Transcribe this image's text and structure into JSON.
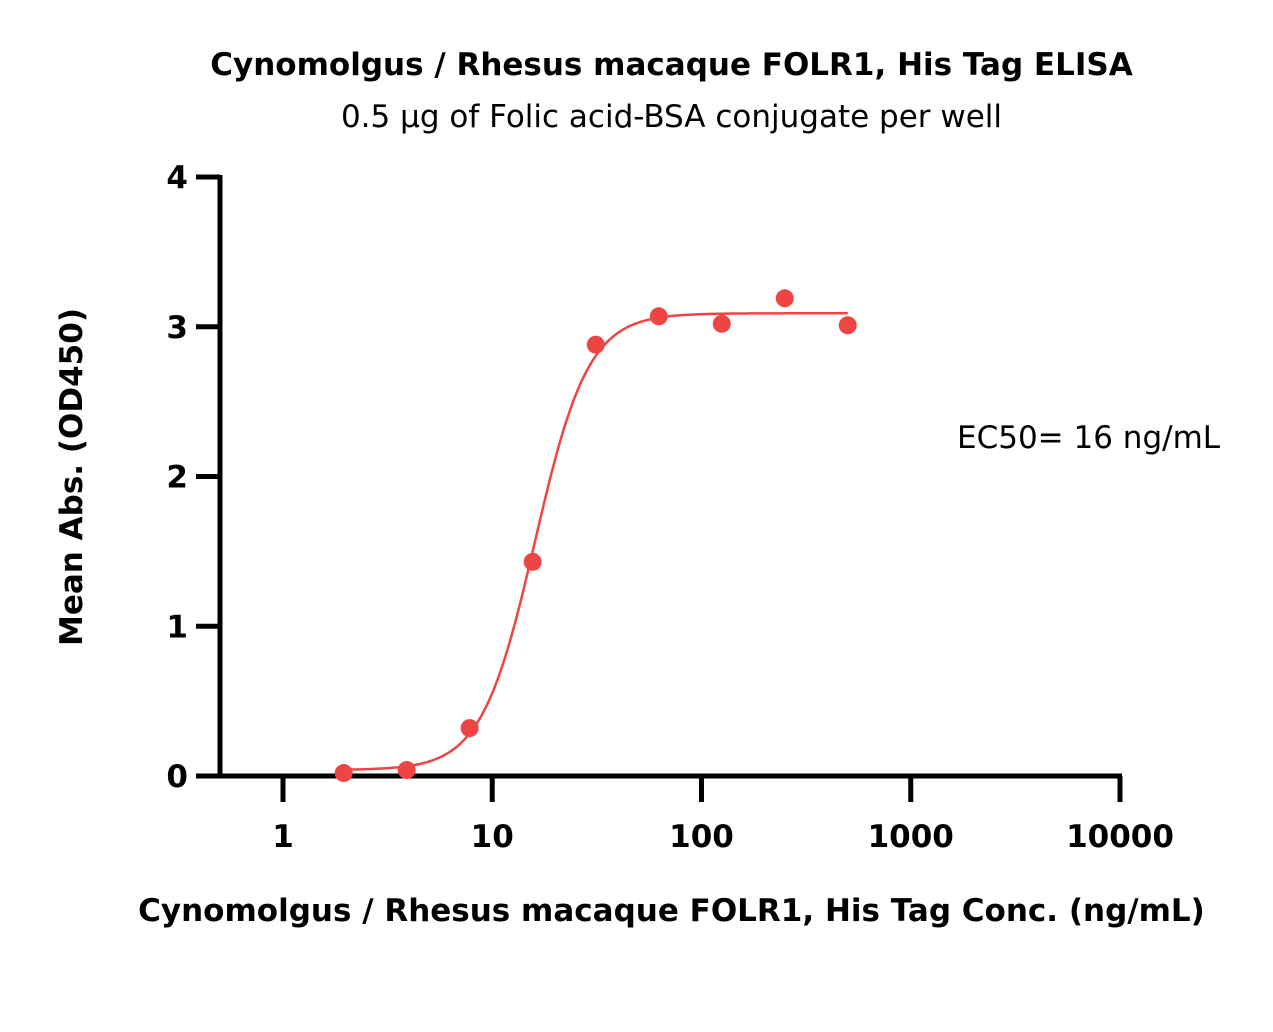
{
  "chart_data": {
    "type": "scatter",
    "title": "Cynomolgus / Rhesus macaque FOLR1, His Tag ELISA",
    "subtitle": "0.5 µg of Folic acid-BSA conjugate per well",
    "xlabel": "Cynomolgus / Rhesus macaque FOLR1, His Tag Conc. (ng/mL)",
    "ylabel": "Mean Abs. (OD450)",
    "x_scale": "log",
    "xlim": [
      0.5,
      10000
    ],
    "ylim": [
      0,
      4
    ],
    "x_ticks": [
      1,
      10,
      100,
      1000,
      10000
    ],
    "x_tick_labels": [
      "1",
      "10",
      "100",
      "1000",
      "10000"
    ],
    "y_ticks": [
      0,
      1,
      2,
      3,
      4
    ],
    "y_tick_labels": [
      "0",
      "1",
      "2",
      "3",
      "4"
    ],
    "grid": false,
    "series": [
      {
        "color": "#ef4444",
        "x": [
          1.95,
          3.9,
          7.8,
          15.6,
          31.25,
          62.5,
          125,
          250,
          500
        ],
        "y": [
          0.02,
          0.04,
          0.32,
          1.43,
          2.88,
          3.07,
          3.02,
          3.19,
          3.01
        ]
      }
    ],
    "fit_curve": {
      "model": "4PL",
      "bottom": 0.04,
      "top": 3.09,
      "ec50": 16,
      "hill": 3.4,
      "x_range": [
        1.95,
        500
      ],
      "color": "#ef4444"
    },
    "annotation": "EC50= 16 ng/mL"
  }
}
